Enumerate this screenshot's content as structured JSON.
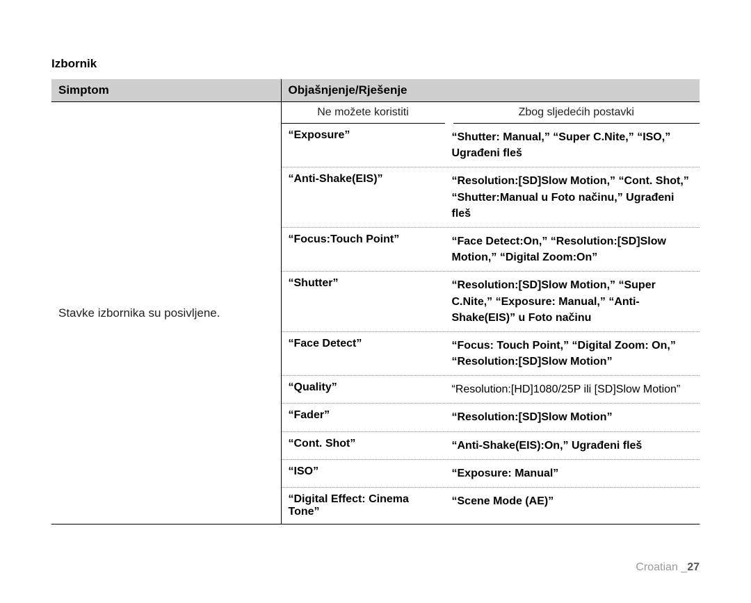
{
  "section_title": "Izbornik",
  "header": {
    "symptom": "Simptom",
    "explanation": "Objašnjenje/Rješenje"
  },
  "symptom_text": "Stavke izbornika su posivljene.",
  "sub_header": {
    "cannot_use": "Ne možete koristiti",
    "because": "Zbog sljedećih postavki"
  },
  "rows": [
    {
      "item": "“Exposure”",
      "reason": "“Shutter: Manual,” “Super C.Nite,” “ISO,” Ugrađeni fleš"
    },
    {
      "item": "“Anti-Shake(EIS)”",
      "reason": "“Resolution:[SD]Slow Motion,” “Cont. Shot,” “Shutter:Manual u Foto načinu,” Ugrađeni fleš"
    },
    {
      "item": "“Focus:Touch Point”",
      "reason": "“Face Detect:On,” “Resolution:[SD]Slow Motion,” “Digital Zoom:On”"
    },
    {
      "item": "“Shutter”",
      "reason": "“Resolution:[SD]Slow Motion,” “Super C.Nite,” “Exposure: Manual,” “Anti-Shake(EIS)” u Foto načinu"
    },
    {
      "item": "“Face Detect”",
      "reason": "“Focus: Touch Point,” “Digital Zoom: On,” “Resolution:[SD]Slow Motion”"
    },
    {
      "item": "“Quality”",
      "reason": "“Resolution:[HD]1080/25P ili [SD]Slow Motion”",
      "normal_weight": true
    },
    {
      "item": "“Fader”",
      "reason": "“Resolution:[SD]Slow Motion”"
    },
    {
      "item": "“Cont. Shot”",
      "reason": "“Anti-Shake(EIS):On,” Ugrađeni fleš"
    },
    {
      "item": "“ISO”",
      "reason": "“Exposure: Manual”"
    },
    {
      "item": "“Digital Effect: Cinema Tone”",
      "reason": "“Scene Mode (AE)”"
    }
  ],
  "footer": {
    "lang": "Croatian _",
    "page": "27"
  },
  "colors": {
    "header_bg": "#cfcfcf",
    "text": "#000000",
    "dotted_border": "#888888",
    "footer_text": "#9a9a9a",
    "footer_page": "#555555"
  }
}
